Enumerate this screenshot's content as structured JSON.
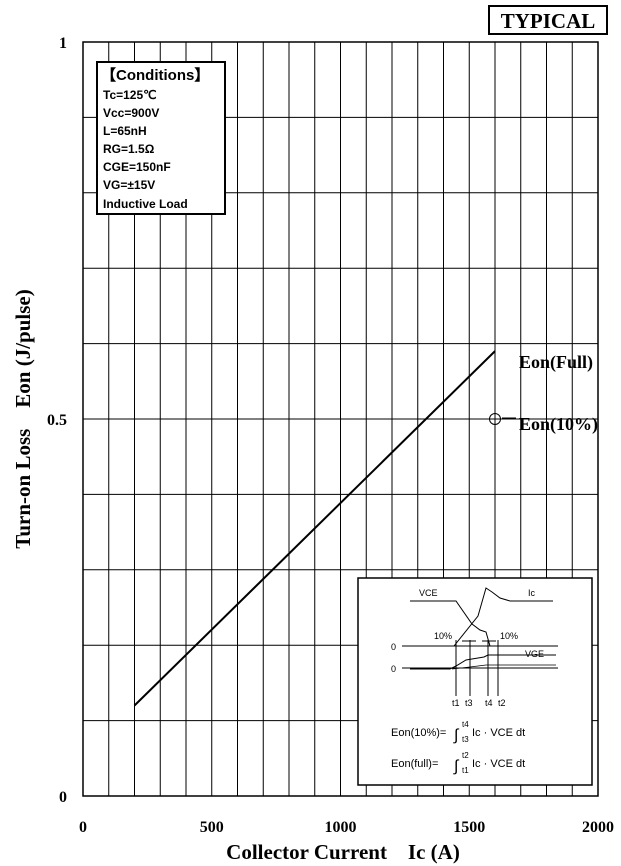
{
  "badge": "TYPICAL",
  "conditions": {
    "title": "【Conditions】",
    "lines": [
      "Tc=125℃",
      "Vcc=900V",
      "L=65nH",
      "RG=1.5Ω",
      "CGE=150nF",
      "VG=±15V",
      "Inductive Load"
    ]
  },
  "inset": {
    "vce_label": "VCE",
    "ic_label": "Ic",
    "vge_label": "VGE",
    "ten_pct_left": "10%",
    "ten_pct_right": "10%",
    "zero_1": "0",
    "zero_2": "0",
    "t_labels": [
      "t1",
      "t3",
      "t4",
      "t2"
    ],
    "formula_10": "Eon(10%)= ∫ t3→t4 Ic · VCE dt",
    "formula_full": "Eon(full)= ∫ t1→t2 Ic · VCE dt",
    "formula_10_prefix": "Eon(10%)=",
    "formula_full_prefix": "Eon(full)=",
    "formula_body": "Ic · VCE dt",
    "lim_10_lower": "t3",
    "lim_10_upper": "t4",
    "lim_full_lower": "t1",
    "lim_full_upper": "t2",
    "integral": "∫"
  },
  "chart_data": {
    "type": "line",
    "xlabel": "Collector Current    Ic (A)",
    "ylabel": "Turn-on Loss    Eon (J/pulse)",
    "xlim": [
      0,
      2000
    ],
    "ylim": [
      0,
      1
    ],
    "x_ticks": [
      0,
      500,
      1000,
      1500,
      2000
    ],
    "x_tick_labels": [
      "0",
      "500",
      "1000",
      "1500",
      "2000"
    ],
    "y_ticks": [
      0,
      0.5,
      1
    ],
    "y_tick_labels": [
      "0",
      "0.5",
      "1"
    ],
    "grid": true,
    "series": [
      {
        "name": "Eon(Full)",
        "x": [
          200,
          1600
        ],
        "y": [
          0.12,
          0.59
        ]
      },
      {
        "name": "Eon(10%)",
        "x": [
          1600
        ],
        "y": [
          0.5
        ]
      }
    ],
    "colors": {
      "line": "#000000",
      "grid": "#000000",
      "background": "#ffffff"
    }
  }
}
